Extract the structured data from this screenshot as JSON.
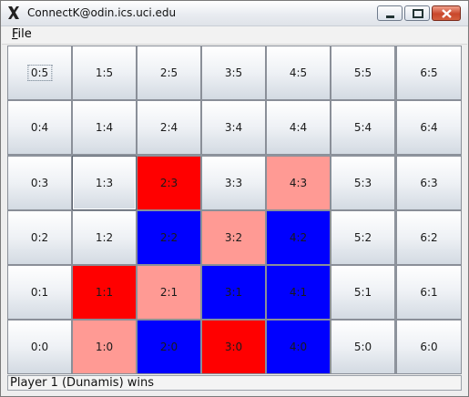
{
  "window": {
    "title": "ConnectK@odin.ics.uci.edu"
  },
  "menu": {
    "file_mnemonic": "F",
    "file_rest": "ile"
  },
  "board": {
    "cells": [
      {
        "label": "0:5",
        "col": 0,
        "row": 5,
        "state": "empty",
        "focused": true
      },
      {
        "label": "1:5",
        "col": 1,
        "row": 5,
        "state": "empty"
      },
      {
        "label": "2:5",
        "col": 2,
        "row": 5,
        "state": "empty"
      },
      {
        "label": "3:5",
        "col": 3,
        "row": 5,
        "state": "empty"
      },
      {
        "label": "4:5",
        "col": 4,
        "row": 5,
        "state": "empty"
      },
      {
        "label": "5:5",
        "col": 5,
        "row": 5,
        "state": "empty"
      },
      {
        "label": "6:5",
        "col": 6,
        "row": 5,
        "state": "empty"
      },
      {
        "label": "0:4",
        "col": 0,
        "row": 4,
        "state": "empty"
      },
      {
        "label": "1:4",
        "col": 1,
        "row": 4,
        "state": "empty"
      },
      {
        "label": "2:4",
        "col": 2,
        "row": 4,
        "state": "empty"
      },
      {
        "label": "3:4",
        "col": 3,
        "row": 4,
        "state": "empty"
      },
      {
        "label": "4:4",
        "col": 4,
        "row": 4,
        "state": "empty"
      },
      {
        "label": "5:4",
        "col": 5,
        "row": 4,
        "state": "empty"
      },
      {
        "label": "6:4",
        "col": 6,
        "row": 4,
        "state": "empty"
      },
      {
        "label": "0:3",
        "col": 0,
        "row": 3,
        "state": "empty"
      },
      {
        "label": "1:3",
        "col": 1,
        "row": 3,
        "state": "empty",
        "selected": true
      },
      {
        "label": "2:3",
        "col": 2,
        "row": 3,
        "state": "red"
      },
      {
        "label": "3:3",
        "col": 3,
        "row": 3,
        "state": "empty"
      },
      {
        "label": "4:3",
        "col": 4,
        "row": 3,
        "state": "pink"
      },
      {
        "label": "5:3",
        "col": 5,
        "row": 3,
        "state": "empty"
      },
      {
        "label": "6:3",
        "col": 6,
        "row": 3,
        "state": "empty"
      },
      {
        "label": "0:2",
        "col": 0,
        "row": 2,
        "state": "empty"
      },
      {
        "label": "1:2",
        "col": 1,
        "row": 2,
        "state": "empty"
      },
      {
        "label": "2:2",
        "col": 2,
        "row": 2,
        "state": "blue"
      },
      {
        "label": "3:2",
        "col": 3,
        "row": 2,
        "state": "pink"
      },
      {
        "label": "4:2",
        "col": 4,
        "row": 2,
        "state": "blue"
      },
      {
        "label": "5:2",
        "col": 5,
        "row": 2,
        "state": "empty"
      },
      {
        "label": "6:2",
        "col": 6,
        "row": 2,
        "state": "empty"
      },
      {
        "label": "0:1",
        "col": 0,
        "row": 1,
        "state": "empty"
      },
      {
        "label": "1:1",
        "col": 1,
        "row": 1,
        "state": "red"
      },
      {
        "label": "2:1",
        "col": 2,
        "row": 1,
        "state": "pink"
      },
      {
        "label": "3:1",
        "col": 3,
        "row": 1,
        "state": "blue"
      },
      {
        "label": "4:1",
        "col": 4,
        "row": 1,
        "state": "blue"
      },
      {
        "label": "5:1",
        "col": 5,
        "row": 1,
        "state": "empty"
      },
      {
        "label": "6:1",
        "col": 6,
        "row": 1,
        "state": "empty"
      },
      {
        "label": "0:0",
        "col": 0,
        "row": 0,
        "state": "empty"
      },
      {
        "label": "1:0",
        "col": 1,
        "row": 0,
        "state": "pink"
      },
      {
        "label": "2:0",
        "col": 2,
        "row": 0,
        "state": "blue"
      },
      {
        "label": "3:0",
        "col": 3,
        "row": 0,
        "state": "red"
      },
      {
        "label": "4:0",
        "col": 4,
        "row": 0,
        "state": "blue"
      },
      {
        "label": "5:0",
        "col": 5,
        "row": 0,
        "state": "empty"
      },
      {
        "label": "6:0",
        "col": 6,
        "row": 0,
        "state": "empty"
      }
    ],
    "colors": {
      "red": "#ff0000",
      "pink": "#ff9a94",
      "blue": "#0000ff"
    }
  },
  "status": {
    "text": "Player 1 (Dunamis) wins"
  }
}
